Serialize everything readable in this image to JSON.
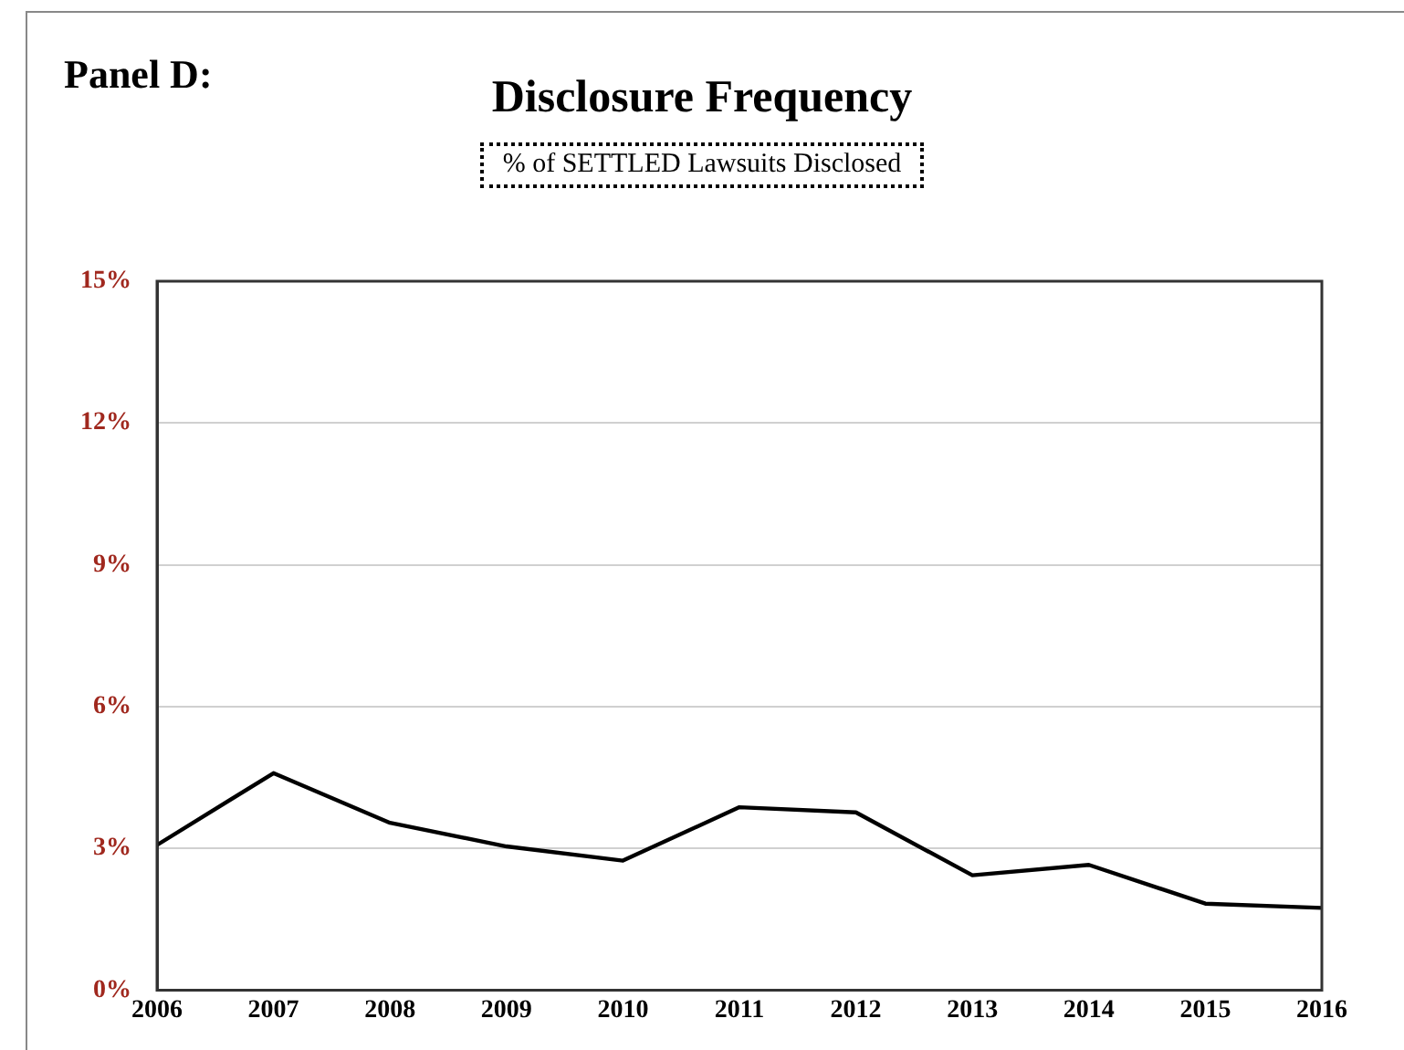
{
  "chart_data": {
    "type": "line",
    "title": "Disclosure Frequency",
    "subtitle": "% of SETTLED Lawsuits Disclosed",
    "annotations": [
      "Panel D:"
    ],
    "x": [
      2006,
      2007,
      2008,
      2009,
      2010,
      2011,
      2012,
      2013,
      2014,
      2015,
      2016
    ],
    "series": [
      {
        "color": "#000000",
        "values": [
          3.07,
          4.59,
          3.54,
          3.04,
          2.74,
          3.87,
          3.76,
          2.43,
          2.65,
          1.83,
          1.74
        ]
      }
    ],
    "xlim": [
      2006,
      2016
    ],
    "xticks": [
      2006,
      2007,
      2008,
      2009,
      2010,
      2011,
      2012,
      2013,
      2014,
      2015,
      2016
    ],
    "ylim": [
      0,
      15
    ],
    "yticks": [
      {
        "value": 0,
        "label": "0%"
      },
      {
        "value": 3,
        "label": "3%"
      },
      {
        "value": 6,
        "label": "6%"
      },
      {
        "value": 9,
        "label": "9%"
      },
      {
        "value": 12,
        "label": "12%"
      },
      {
        "value": 15,
        "label": "15%"
      }
    ],
    "grid": "y",
    "legend": false,
    "marker": "none",
    "line_style": "solid"
  }
}
